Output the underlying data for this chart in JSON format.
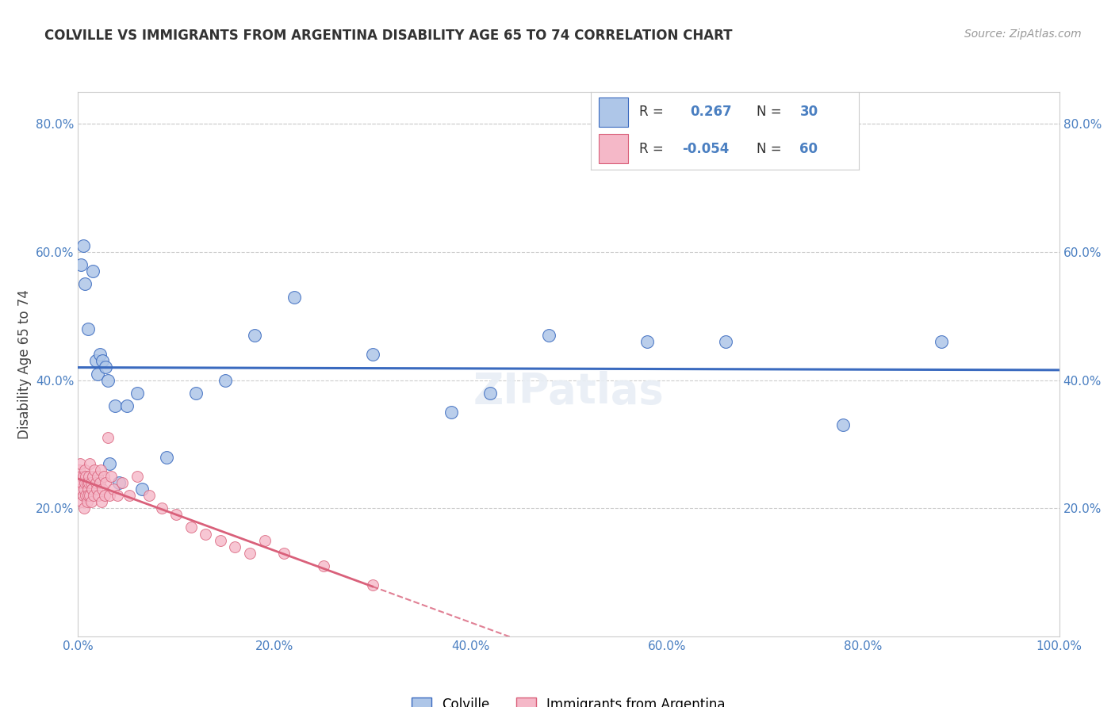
{
  "title": "COLVILLE VS IMMIGRANTS FROM ARGENTINA DISABILITY AGE 65 TO 74 CORRELATION CHART",
  "source": "Source: ZipAtlas.com",
  "ylabel": "Disability Age 65 to 74",
  "legend_label_1": "Colville",
  "legend_label_2": "Immigrants from Argentina",
  "r1": 0.267,
  "n1": 30,
  "r2": -0.054,
  "n2": 60,
  "colville_color": "#aec6e8",
  "argentina_color": "#f5b8c8",
  "line1_color": "#3a6abf",
  "line2_color": "#d9607a",
  "background_color": "#ffffff",
  "grid_color": "#cccccc",
  "xlim": [
    0.0,
    1.0
  ],
  "ylim": [
    0.0,
    0.85
  ],
  "colville_x": [
    0.003,
    0.005,
    0.007,
    0.01,
    0.015,
    0.018,
    0.02,
    0.022,
    0.025,
    0.028,
    0.03,
    0.032,
    0.038,
    0.042,
    0.05,
    0.06,
    0.065,
    0.09,
    0.12,
    0.15,
    0.18,
    0.22,
    0.3,
    0.38,
    0.42,
    0.48,
    0.58,
    0.66,
    0.78,
    0.88
  ],
  "colville_y": [
    0.58,
    0.61,
    0.55,
    0.48,
    0.57,
    0.43,
    0.41,
    0.44,
    0.43,
    0.42,
    0.4,
    0.27,
    0.36,
    0.24,
    0.36,
    0.38,
    0.23,
    0.28,
    0.38,
    0.4,
    0.47,
    0.53,
    0.44,
    0.35,
    0.38,
    0.47,
    0.46,
    0.46,
    0.33,
    0.46
  ],
  "argentina_x": [
    0.001,
    0.002,
    0.002,
    0.003,
    0.003,
    0.004,
    0.004,
    0.005,
    0.005,
    0.006,
    0.006,
    0.007,
    0.007,
    0.008,
    0.008,
    0.009,
    0.009,
    0.01,
    0.01,
    0.011,
    0.011,
    0.012,
    0.012,
    0.013,
    0.013,
    0.014,
    0.015,
    0.016,
    0.017,
    0.018,
    0.019,
    0.02,
    0.021,
    0.022,
    0.023,
    0.024,
    0.025,
    0.026,
    0.027,
    0.028,
    0.03,
    0.032,
    0.034,
    0.036,
    0.04,
    0.045,
    0.052,
    0.06,
    0.072,
    0.085,
    0.1,
    0.115,
    0.13,
    0.145,
    0.16,
    0.175,
    0.19,
    0.21,
    0.25,
    0.3
  ],
  "argentina_y": [
    0.26,
    0.24,
    0.27,
    0.23,
    0.25,
    0.21,
    0.24,
    0.22,
    0.25,
    0.23,
    0.2,
    0.24,
    0.26,
    0.22,
    0.25,
    0.21,
    0.24,
    0.23,
    0.22,
    0.24,
    0.25,
    0.22,
    0.27,
    0.24,
    0.21,
    0.23,
    0.25,
    0.22,
    0.26,
    0.24,
    0.23,
    0.25,
    0.22,
    0.24,
    0.26,
    0.21,
    0.23,
    0.25,
    0.22,
    0.24,
    0.31,
    0.22,
    0.25,
    0.23,
    0.22,
    0.24,
    0.22,
    0.25,
    0.22,
    0.2,
    0.19,
    0.17,
    0.16,
    0.15,
    0.14,
    0.13,
    0.15,
    0.13,
    0.11,
    0.08
  ],
  "xtick_vals": [
    0.0,
    0.2,
    0.4,
    0.6,
    0.8,
    1.0
  ],
  "ytick_vals": [
    0.2,
    0.4,
    0.6,
    0.8
  ]
}
